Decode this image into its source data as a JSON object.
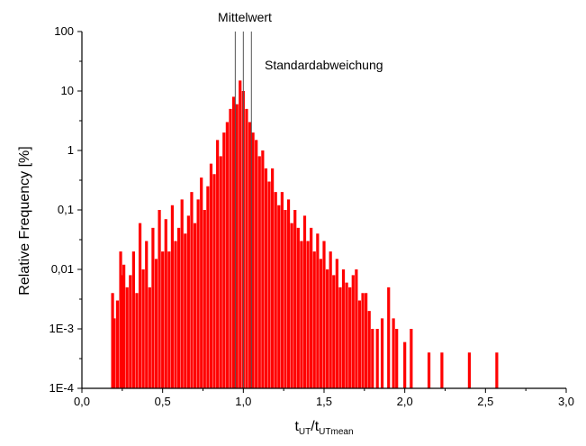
{
  "chart_data": {
    "type": "bar",
    "style": "histogram",
    "bar_color": "#ff0000",
    "y_scale": "log",
    "grid": false,
    "legend": "none",
    "xlim": [
      0.0,
      3.0
    ],
    "ylim": [
      0.0001,
      100
    ],
    "x_ticks": [
      "0,0",
      "0,5",
      "1,0",
      "1,5",
      "2,0",
      "2,5",
      "3,0"
    ],
    "y_ticks": [
      "1E-4",
      "1E-3",
      "0,01",
      "0,1",
      "1",
      "10",
      "100"
    ],
    "xlabel_main": "t",
    "xlabel_sub1": "UT",
    "xlabel_mid": "/t",
    "xlabel_sub2": "UTmean",
    "ylabel": "Relative Frequency [%]",
    "annotations": {
      "mean_label": "Mittelwert",
      "std_label": "Standardabweichung"
    },
    "reference_lines": [
      0.95,
      1.0,
      1.05
    ],
    "x": [
      0.19,
      0.2,
      0.22,
      0.24,
      0.25,
      0.26,
      0.28,
      0.3,
      0.32,
      0.34,
      0.36,
      0.38,
      0.4,
      0.42,
      0.44,
      0.46,
      0.48,
      0.5,
      0.52,
      0.54,
      0.56,
      0.58,
      0.6,
      0.62,
      0.64,
      0.66,
      0.68,
      0.7,
      0.72,
      0.74,
      0.76,
      0.78,
      0.8,
      0.82,
      0.84,
      0.86,
      0.88,
      0.9,
      0.92,
      0.94,
      0.96,
      0.98,
      1.0,
      1.02,
      1.04,
      1.06,
      1.08,
      1.1,
      1.12,
      1.14,
      1.16,
      1.18,
      1.2,
      1.22,
      1.24,
      1.26,
      1.28,
      1.3,
      1.32,
      1.34,
      1.36,
      1.38,
      1.4,
      1.42,
      1.44,
      1.46,
      1.48,
      1.5,
      1.52,
      1.54,
      1.56,
      1.58,
      1.6,
      1.62,
      1.64,
      1.66,
      1.68,
      1.7,
      1.72,
      1.74,
      1.76,
      1.78,
      1.8,
      1.83,
      1.86,
      1.9,
      1.93,
      1.95,
      2.0,
      2.04,
      2.15,
      2.23,
      2.4,
      2.57
    ],
    "values": [
      0.004,
      0.0015,
      0.003,
      0.02,
      0.008,
      0.012,
      0.005,
      0.008,
      0.02,
      0.004,
      0.06,
      0.01,
      0.03,
      0.005,
      0.05,
      0.015,
      0.1,
      0.02,
      0.07,
      0.02,
      0.12,
      0.03,
      0.05,
      0.15,
      0.04,
      0.08,
      0.2,
      0.06,
      0.15,
      0.35,
      0.1,
      0.25,
      0.6,
      0.4,
      1.5,
      0.8,
      2.0,
      3.0,
      5.0,
      8.0,
      6.0,
      15.0,
      10.0,
      5.0,
      3.0,
      2.0,
      1.5,
      0.8,
      1.0,
      0.5,
      0.3,
      0.5,
      0.2,
      0.12,
      0.2,
      0.1,
      0.15,
      0.06,
      0.1,
      0.05,
      0.03,
      0.08,
      0.03,
      0.05,
      0.02,
      0.04,
      0.015,
      0.03,
      0.01,
      0.02,
      0.008,
      0.015,
      0.005,
      0.01,
      0.006,
      0.005,
      0.008,
      0.01,
      0.003,
      0.004,
      0.004,
      0.002,
      0.001,
      0.001,
      0.0015,
      0.005,
      0.0015,
      0.001,
      0.0006,
      0.001,
      0.0004,
      0.0004,
      0.0004,
      0.0004
    ]
  }
}
